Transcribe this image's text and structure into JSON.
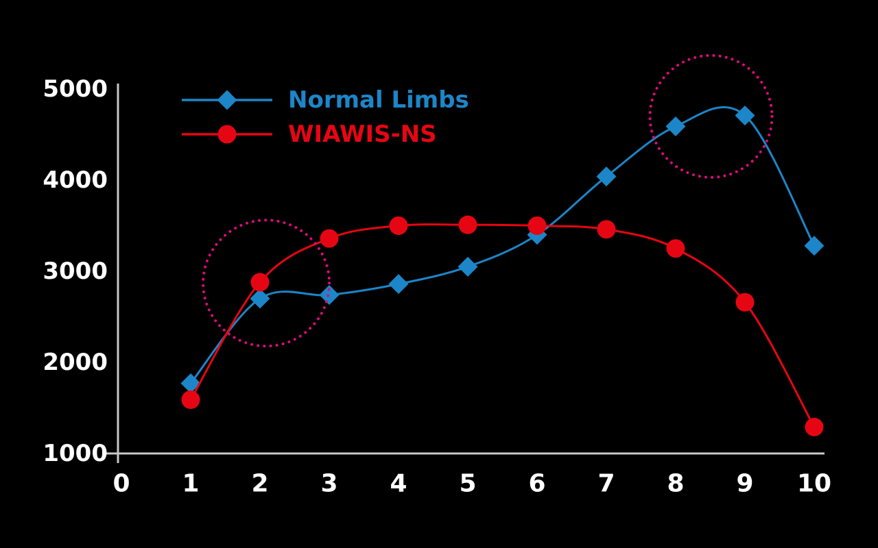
{
  "background_color": "#000000",
  "chart_data": {
    "type": "line",
    "x": [
      1,
      2,
      3,
      4,
      5,
      6,
      7,
      8,
      9,
      10
    ],
    "series": [
      {
        "name": "Normal Limbs",
        "color": "#1c86c8",
        "marker": "diamond",
        "values": [
          1770,
          2700,
          2740,
          2860,
          3050,
          3400,
          4040,
          4590,
          4710,
          3280
        ]
      },
      {
        "name": "WIAWIS-NS",
        "color": "#e60613",
        "marker": "circle",
        "values": [
          1590,
          2880,
          3360,
          3500,
          3510,
          3500,
          3460,
          3250,
          2660,
          1290
        ]
      }
    ],
    "title": "",
    "xlabel": "",
    "ylabel": "",
    "x_ticks": [
      0,
      1,
      2,
      3,
      4,
      5,
      6,
      7,
      8,
      9,
      10
    ],
    "y_ticks": [
      1000,
      2000,
      3000,
      4000,
      5000
    ],
    "xlim": [
      0,
      10.2
    ],
    "ylim": [
      1000,
      5000
    ],
    "grid": false,
    "legend_position": "top-left-inside",
    "axis_color": "#c9c9c9",
    "text_color": "#ffffff",
    "highlight_color": "#dd0a7c",
    "annotations": [
      {
        "kind": "dotted-circle",
        "x": 2.09,
        "y": 2870,
        "radius_px": 92
      },
      {
        "kind": "dotted-circle",
        "x": 8.51,
        "y": 4700,
        "radius_px": 89
      }
    ]
  }
}
